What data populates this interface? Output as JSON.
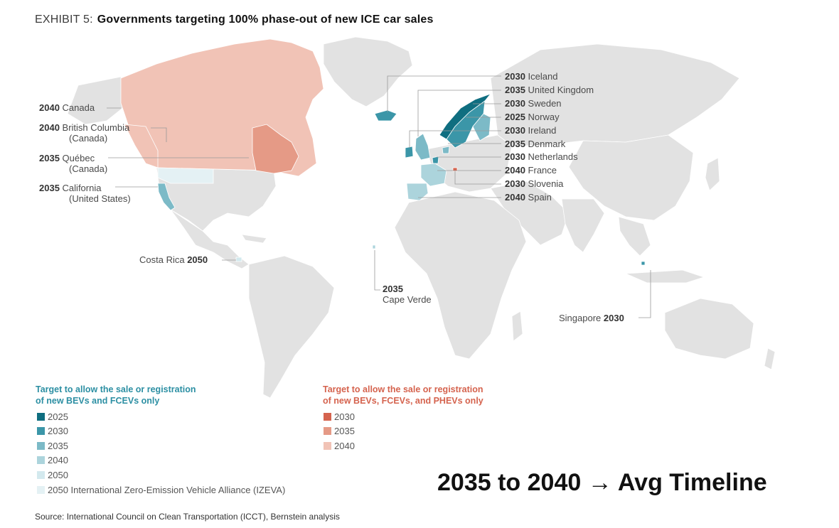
{
  "header": {
    "exhibit": "EXHIBIT 5:",
    "title": "Governments targeting 100% phase-out of new ICE car sales"
  },
  "labels": {
    "canada": {
      "year": "2040",
      "name": "Canada"
    },
    "bc": {
      "year": "2040",
      "name": "British Columbia",
      "sub": "(Canada)"
    },
    "quebec": {
      "year": "2035",
      "name": "Québec",
      "sub": "(Canada)"
    },
    "california": {
      "year": "2035",
      "name": "California",
      "sub": "(United States)"
    },
    "costa_rica": {
      "name": "Costa Rica",
      "year": "2050"
    },
    "cape_verde": {
      "year": "2035",
      "name": "Cape Verde"
    },
    "singapore": {
      "name": "Singapore",
      "year": "2030"
    },
    "europe": [
      {
        "year": "2030",
        "name": "Iceland"
      },
      {
        "year": "2035",
        "name": "United Kingdom"
      },
      {
        "year": "2030",
        "name": "Sweden"
      },
      {
        "year": "2025",
        "name": "Norway"
      },
      {
        "year": "2030",
        "name": "Ireland"
      },
      {
        "year": "2035",
        "name": "Denmark"
      },
      {
        "year": "2030",
        "name": "Netherlands"
      },
      {
        "year": "2040",
        "name": "France"
      },
      {
        "year": "2030",
        "name": "Slovenia"
      },
      {
        "year": "2040",
        "name": "Spain"
      }
    ]
  },
  "legend": {
    "bev_heading_1": "Target to allow the sale or registration",
    "bev_heading_2": "of new BEVs and FCEVs only",
    "bev_items": [
      {
        "label": "2025",
        "color": "#0f6e80"
      },
      {
        "label": "2030",
        "color": "#3b96a8"
      },
      {
        "label": "2035",
        "color": "#7cbac7"
      },
      {
        "label": "2040",
        "color": "#acd4dc"
      },
      {
        "label": "2050",
        "color": "#d3e9ee"
      },
      {
        "label": "2050 International Zero-Emission Vehicle Alliance (IZEVA)",
        "color": "#e4f1f4"
      }
    ],
    "phev_heading_1": "Target to allow the sale or registration",
    "phev_heading_2": "of new BEVs, FCEVs, and PHEVs only",
    "phev_items": [
      {
        "label": "2030",
        "color": "#d5634e"
      },
      {
        "label": "2035",
        "color": "#e59a86"
      },
      {
        "label": "2040",
        "color": "#f1c3b6"
      }
    ]
  },
  "colors": {
    "land": "#e2e2e2",
    "border": "#ffffff",
    "leader": "#9a9a9a"
  },
  "note": "2035  to 2040 → Avg Timeline",
  "source": "Source: International Council on Clean Transportation (ICCT), Bernstein analysis"
}
